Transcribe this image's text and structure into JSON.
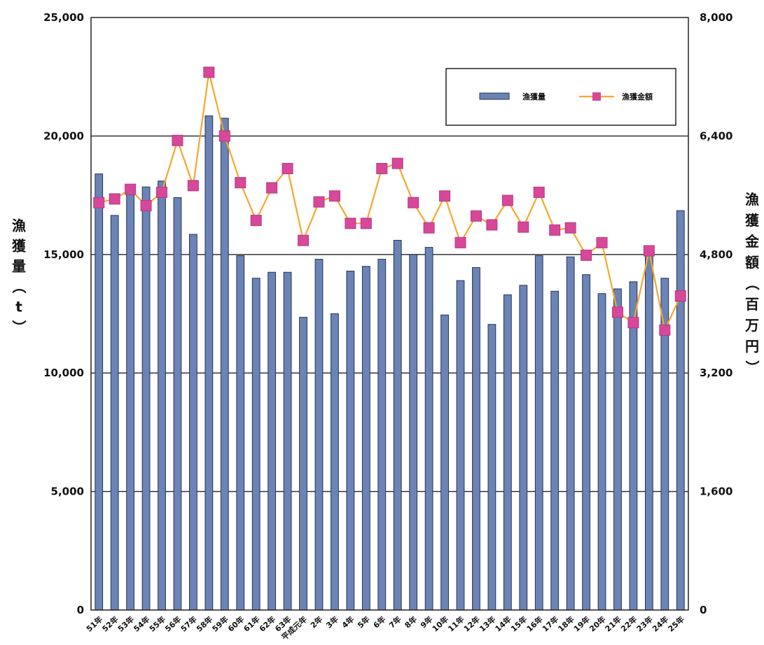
{
  "chart_data": {
    "type": "bar+line",
    "categories": [
      "51年",
      "52年",
      "53年",
      "54年",
      "55年",
      "56年",
      "57年",
      "58年",
      "59年",
      "60年",
      "61年",
      "62年",
      "63年",
      "平成元年",
      "2年",
      "3年",
      "4年",
      "5年",
      "6年",
      "7年",
      "8年",
      "9年",
      "10年",
      "11年",
      "12年",
      "13年",
      "14年",
      "15年",
      "16年",
      "17年",
      "18年",
      "19年",
      "20年",
      "21年",
      "22年",
      "23年",
      "24年",
      "25年"
    ],
    "series": [
      {
        "name": "漁獲量",
        "kind": "bar",
        "axis": "left",
        "color": "#6b84b5",
        "values": [
          18400,
          16650,
          17700,
          17850,
          18100,
          17400,
          15850,
          20850,
          20750,
          14950,
          14000,
          14250,
          14250,
          12350,
          14800,
          12500,
          14300,
          14500,
          14800,
          15600,
          15000,
          15300,
          12450,
          13900,
          14450,
          12050,
          13300,
          13700,
          14950,
          13450,
          14900,
          14150,
          13350,
          13550,
          13850,
          15000,
          14000,
          16850
        ]
      },
      {
        "name": "漁獲金額",
        "kind": "line",
        "axis": "right",
        "color": "#f7a62b",
        "marker_color": "#d8489a",
        "values": [
          5500,
          5550,
          5680,
          5460,
          5640,
          6340,
          5730,
          7260,
          6400,
          5770,
          5260,
          5700,
          5960,
          4990,
          5510,
          5590,
          5220,
          5220,
          5960,
          6030,
          5500,
          5160,
          5590,
          4960,
          5320,
          5200,
          5530,
          5170,
          5640,
          5130,
          5160,
          4790,
          4960,
          4020,
          3880,
          4850,
          3780,
          4240
        ]
      }
    ],
    "y_left": {
      "label": "漁獲量（t）",
      "ylim": [
        0,
        25000
      ],
      "ticks": [
        0,
        5000,
        10000,
        15000,
        20000,
        25000
      ],
      "tick_labels": [
        "0",
        "5,000",
        "10,000",
        "15,000",
        "20,000",
        "25,000"
      ]
    },
    "y_right": {
      "label": "漁獲金額（百万円）",
      "ylim": [
        0,
        8000
      ],
      "ticks": [
        0,
        1600,
        3200,
        4800,
        6400,
        8000
      ],
      "tick_labels": [
        "0",
        "1,600",
        "3,200",
        "4,800",
        "6,400",
        "8,000"
      ]
    },
    "grid": true,
    "legend_position": "top-right"
  }
}
